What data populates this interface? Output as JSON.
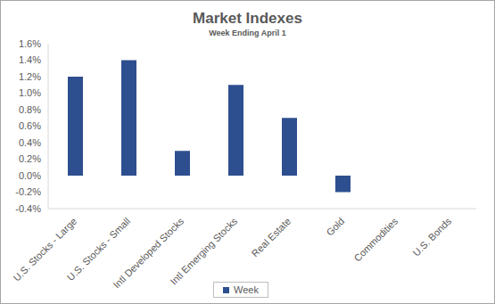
{
  "chart_data": {
    "type": "bar",
    "title": "Market Indexes",
    "subtitle": "Week Ending April 1",
    "categories": [
      "U.S. Stocks - Large",
      "U.S. Stocks - Small",
      "Intl Developed Stocks",
      "Intl Emerging Stocks",
      "Real Estate",
      "Gold",
      "Commodities",
      "U.S. Bonds"
    ],
    "series": [
      {
        "name": "Week",
        "color": "#2e4f8f",
        "values": [
          1.2,
          1.4,
          0.3,
          1.1,
          0.7,
          -0.2,
          null,
          null
        ]
      }
    ],
    "ylim": [
      -0.4,
      1.6
    ],
    "yticks": [
      {
        "value": -0.4,
        "label": "-0.4%"
      },
      {
        "value": -0.2,
        "label": "-0.2%"
      },
      {
        "value": 0.0,
        "label": "0.0%"
      },
      {
        "value": 0.2,
        "label": "0.2%"
      },
      {
        "value": 0.4,
        "label": "0.4%"
      },
      {
        "value": 0.6,
        "label": "0.6%"
      },
      {
        "value": 0.8,
        "label": "0.8%"
      },
      {
        "value": 1.0,
        "label": "1.0%"
      },
      {
        "value": 1.2,
        "label": "1.2%"
      },
      {
        "value": 1.4,
        "label": "1.4%"
      },
      {
        "value": 1.6,
        "label": "1.6%"
      }
    ],
    "grid": false,
    "legend": "bottom"
  }
}
